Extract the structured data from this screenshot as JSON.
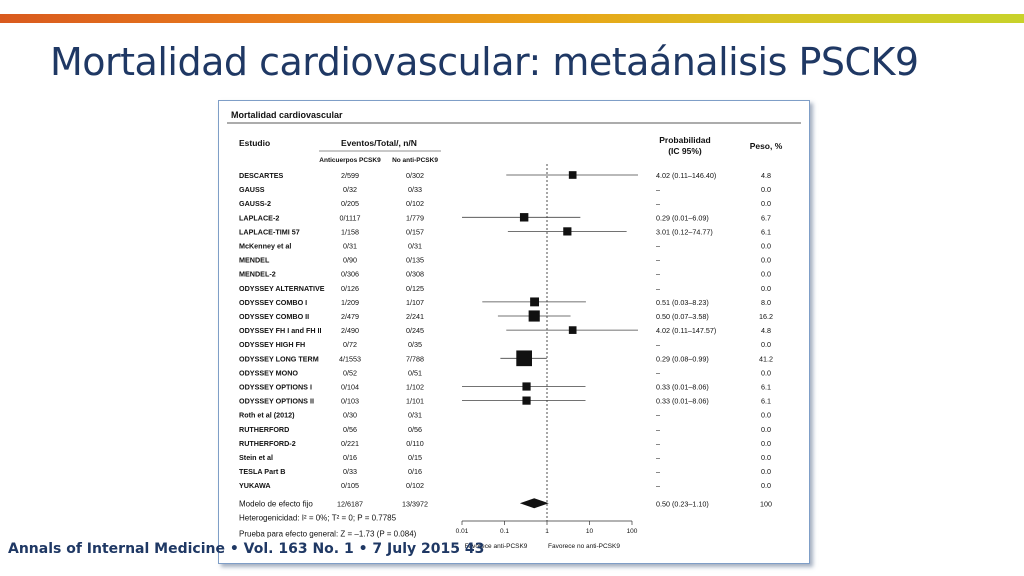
{
  "slide": {
    "title": "Mortalidad cardiovascular: metaánalisis PSCK9",
    "citation": "Annals of Internal Medicine • Vol. 163 No. 1 • 7 July 2015 43",
    "accent_colors": [
      "#d95a1e",
      "#e9a417",
      "#c8d22a"
    ],
    "title_color": "#1f3864"
  },
  "chart_data": {
    "type": "forest",
    "title": "Mortalidad cardiovascular",
    "headers": {
      "study": "Estudio",
      "events": "Eventos/Total/, n/N",
      "treated": "Anticuerpos PCSK9",
      "control": "No anti-PCSK9",
      "probability": "Probabilidad",
      "probability_ci": "(IC 95%)",
      "weight": "Peso, %"
    },
    "x_axis": {
      "scale": "log",
      "range": [
        0.01,
        100
      ],
      "ticks": [
        0.01,
        0.1,
        1,
        10,
        100
      ],
      "tick_labels": [
        "0.01",
        "0.1",
        "1",
        "10",
        "100"
      ],
      "reference_line": 1,
      "favors_left": "Favorece anti-PCSK9",
      "favors_right": "Favorece no anti-PCSK9"
    },
    "studies": [
      {
        "name": "DESCARTES",
        "treated": "2/599",
        "control": "0/302",
        "or_text": "4.02 (0.11–146.40)",
        "weight_text": "4.8",
        "or": 4.02,
        "lo": 0.11,
        "hi": 146.4,
        "weight": 4.8
      },
      {
        "name": "GAUSS",
        "treated": "0/32",
        "control": "0/33",
        "or_text": "–",
        "weight_text": "0.0",
        "or": null,
        "lo": null,
        "hi": null,
        "weight": 0
      },
      {
        "name": "GAUSS-2",
        "treated": "0/205",
        "control": "0/102",
        "or_text": "–",
        "weight_text": "0.0",
        "or": null,
        "lo": null,
        "hi": null,
        "weight": 0
      },
      {
        "name": "LAPLACE-2",
        "treated": "0/1117",
        "control": "1/779",
        "or_text": "0.29 (0.01–6.09)",
        "weight_text": "6.7",
        "or": 0.29,
        "lo": 0.01,
        "hi": 6.09,
        "weight": 6.7
      },
      {
        "name": "LAPLACE-TIMI 57",
        "treated": "1/158",
        "control": "0/157",
        "or_text": "3.01 (0.12–74.77)",
        "weight_text": "6.1",
        "or": 3.01,
        "lo": 0.12,
        "hi": 74.77,
        "weight": 6.1
      },
      {
        "name": "McKenney et al",
        "treated": "0/31",
        "control": "0/31",
        "or_text": "–",
        "weight_text": "0.0",
        "or": null,
        "lo": null,
        "hi": null,
        "weight": 0
      },
      {
        "name": "MENDEL",
        "treated": "0/90",
        "control": "0/135",
        "or_text": "–",
        "weight_text": "0.0",
        "or": null,
        "lo": null,
        "hi": null,
        "weight": 0
      },
      {
        "name": "MENDEL-2",
        "treated": "0/306",
        "control": "0/308",
        "or_text": "–",
        "weight_text": "0.0",
        "or": null,
        "lo": null,
        "hi": null,
        "weight": 0
      },
      {
        "name": "ODYSSEY ALTERNATIVE",
        "treated": "0/126",
        "control": "0/125",
        "or_text": "–",
        "weight_text": "0.0",
        "or": null,
        "lo": null,
        "hi": null,
        "weight": 0
      },
      {
        "name": "ODYSSEY COMBO I",
        "treated": "1/209",
        "control": "1/107",
        "or_text": "0.51 (0.03–8.23)",
        "weight_text": "8.0",
        "or": 0.51,
        "lo": 0.03,
        "hi": 8.23,
        "weight": 8.0
      },
      {
        "name": "ODYSSEY COMBO II",
        "treated": "2/479",
        "control": "2/241",
        "or_text": "0.50 (0.07–3.58)",
        "weight_text": "16.2",
        "or": 0.5,
        "lo": 0.07,
        "hi": 3.58,
        "weight": 16.2
      },
      {
        "name": "ODYSSEY FH I and FH II",
        "treated": "2/490",
        "control": "0/245",
        "or_text": "4.02 (0.11–147.57)",
        "weight_text": "4.8",
        "or": 4.02,
        "lo": 0.11,
        "hi": 147.57,
        "weight": 4.8
      },
      {
        "name": "ODYSSEY HIGH FH",
        "treated": "0/72",
        "control": "0/35",
        "or_text": "–",
        "weight_text": "0.0",
        "or": null,
        "lo": null,
        "hi": null,
        "weight": 0
      },
      {
        "name": "ODYSSEY LONG TERM",
        "treated": "4/1553",
        "control": "7/788",
        "or_text": "0.29 (0.08–0.99)",
        "weight_text": "41.2",
        "or": 0.29,
        "lo": 0.08,
        "hi": 0.99,
        "weight": 41.2
      },
      {
        "name": "ODYSSEY MONO",
        "treated": "0/52",
        "control": "0/51",
        "or_text": "–",
        "weight_text": "0.0",
        "or": null,
        "lo": null,
        "hi": null,
        "weight": 0
      },
      {
        "name": "ODYSSEY OPTIONS I",
        "treated": "0/104",
        "control": "1/102",
        "or_text": "0.33 (0.01–8.06)",
        "weight_text": "6.1",
        "or": 0.33,
        "lo": 0.01,
        "hi": 8.06,
        "weight": 6.1
      },
      {
        "name": "ODYSSEY OPTIONS II",
        "treated": "0/103",
        "control": "1/101",
        "or_text": "0.33 (0.01–8.06)",
        "weight_text": "6.1",
        "or": 0.33,
        "lo": 0.01,
        "hi": 8.06,
        "weight": 6.1
      },
      {
        "name": "Roth et al (2012)",
        "treated": "0/30",
        "control": "0/31",
        "or_text": "–",
        "weight_text": "0.0",
        "or": null,
        "lo": null,
        "hi": null,
        "weight": 0
      },
      {
        "name": "RUTHERFORD",
        "treated": "0/56",
        "control": "0/56",
        "or_text": "–",
        "weight_text": "0.0",
        "or": null,
        "lo": null,
        "hi": null,
        "weight": 0
      },
      {
        "name": "RUTHERFORD-2",
        "treated": "0/221",
        "control": "0/110",
        "or_text": "–",
        "weight_text": "0.0",
        "or": null,
        "lo": null,
        "hi": null,
        "weight": 0
      },
      {
        "name": "Stein et al",
        "treated": "0/16",
        "control": "0/15",
        "or_text": "–",
        "weight_text": "0.0",
        "or": null,
        "lo": null,
        "hi": null,
        "weight": 0
      },
      {
        "name": "TESLA Part B",
        "treated": "0/33",
        "control": "0/16",
        "or_text": "–",
        "weight_text": "0.0",
        "or": null,
        "lo": null,
        "hi": null,
        "weight": 0
      },
      {
        "name": "YUKAWA",
        "treated": "0/105",
        "control": "0/102",
        "or_text": "–",
        "weight_text": "0.0",
        "or": null,
        "lo": null,
        "hi": null,
        "weight": 0
      }
    ],
    "pooled": {
      "name": "Modelo de efecto fijo",
      "treated": "12/6187",
      "control": "13/3972",
      "or_text": "0.50 (0.23–1.10)",
      "weight_text": "100",
      "or": 0.5,
      "lo": 0.23,
      "hi": 1.1
    },
    "heterogeneity": "Heterogenicidad: I² = 0%; Τ² = 0; P = 0.7785",
    "overall_test": "Prueba para efecto general: Z = –1.73 (P = 0.084)"
  }
}
